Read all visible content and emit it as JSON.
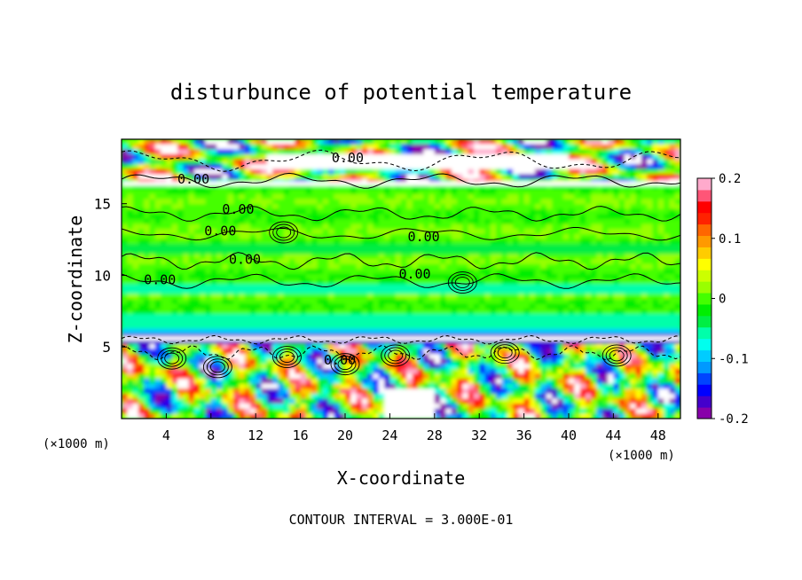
{
  "chart_data": {
    "type": "heatmap",
    "title": "disturbunce of potential temperature",
    "xlabel": "X-coordinate",
    "ylabel": "Z-coordinate",
    "x_unit": "(×1000 m)",
    "xlim": [
      0,
      50
    ],
    "ylim": [
      0,
      19.5
    ],
    "x_ticks": [
      4,
      8,
      12,
      16,
      20,
      24,
      28,
      32,
      36,
      40,
      44,
      48
    ],
    "y_ticks": [
      5,
      10,
      15
    ],
    "colorbar": {
      "range": [
        -0.2,
        0.2
      ],
      "tick_labels": [
        "0.2",
        "0.1",
        "0",
        "-0.1",
        "-0.2"
      ],
      "tick_values": [
        0.2,
        0.1,
        0,
        -0.1,
        -0.2
      ],
      "colors": [
        "#8800aa",
        "#4400cc",
        "#0000ff",
        "#0044ff",
        "#0099ff",
        "#00ccff",
        "#00ffee",
        "#00ffaa",
        "#00ee44",
        "#00ee00",
        "#44ff00",
        "#99ff00",
        "#ccff00",
        "#ffff00",
        "#ffcc00",
        "#ff9900",
        "#ff6600",
        "#ff2200",
        "#ff0000",
        "#ff5577",
        "#ffaacc"
      ]
    },
    "contour_labels": [
      {
        "x": 18.8,
        "z": 18.2,
        "text": "0.00"
      },
      {
        "x": 5.0,
        "z": 16.7,
        "text": "0.00"
      },
      {
        "x": 9.0,
        "z": 14.6,
        "text": "0.00"
      },
      {
        "x": 7.4,
        "z": 13.1,
        "text": "0.00"
      },
      {
        "x": 9.6,
        "z": 11.1,
        "text": "0.00"
      },
      {
        "x": 2.0,
        "z": 9.7,
        "text": "0.00"
      },
      {
        "x": 25.6,
        "z": 12.7,
        "text": "0.00"
      },
      {
        "x": 24.8,
        "z": 10.1,
        "text": "0.00"
      },
      {
        "x": 18.1,
        "z": 4.1,
        "text": "0.00"
      }
    ],
    "contour_interval_text": "CONTOUR INTERVAL = 3.000E-01"
  }
}
